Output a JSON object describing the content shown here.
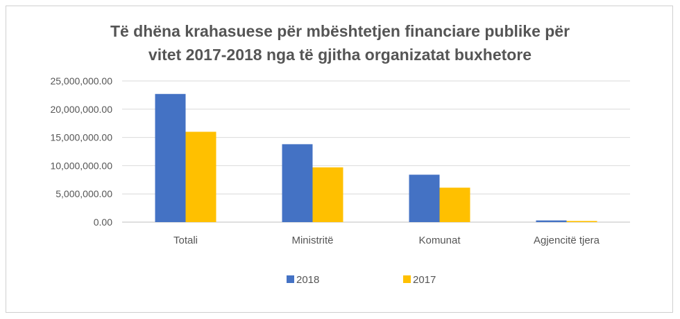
{
  "chart_data": {
    "type": "bar",
    "title_lines": [
      "Të dhëna krahasuese për mbështetjen financiare publike për",
      "vitet 2017-2018 nga të gjitha organizatat buxhetore"
    ],
    "categories": [
      "Totali",
      "Ministritë",
      "Komunat",
      "Agjencitë tjera"
    ],
    "series": [
      {
        "name": "2018",
        "color": "#4472C4",
        "values": [
          22700000,
          13800000,
          8400000,
          300000
        ]
      },
      {
        "name": "2017",
        "color": "#FFC000",
        "values": [
          16000000,
          9700000,
          6100000,
          200000
        ]
      }
    ],
    "y_ticks": [
      "0.00",
      "5,000,000.00",
      "10,000,000.00",
      "15,000,000.00",
      "20,000,000.00",
      "25,000,000.00"
    ],
    "ylim": [
      0,
      25000000
    ],
    "grid": true,
    "legend_position": "bottom",
    "gridline_color": "#d9d9d9",
    "axis_color": "#bfbfbf"
  }
}
